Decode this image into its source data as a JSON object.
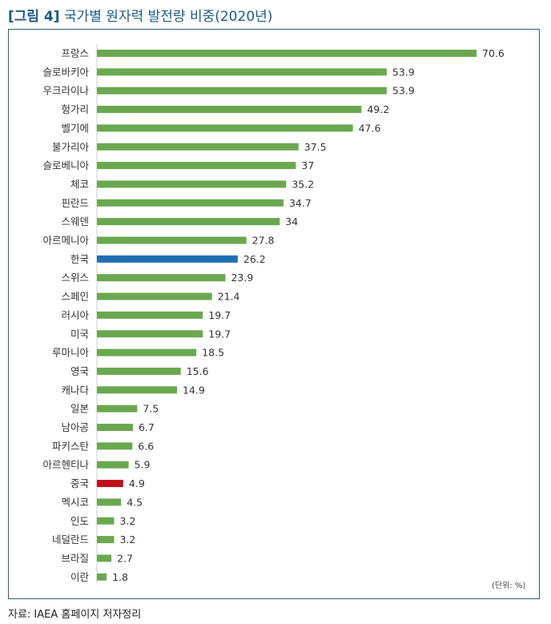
{
  "title": {
    "figure": "[그림 4]",
    "text": "국가별 원자력 발전량 비중(2020년)"
  },
  "unit": "(단위: %)",
  "source": "자료: IAEA 홈페이지 저자정리",
  "colors": {
    "default_bar": "#6aa84f",
    "korea_bar": "#1f6fb2",
    "china_bar": "#c0101c",
    "frame": "#2d5f7a",
    "title": "#1a5a8a"
  },
  "chart_data": {
    "type": "bar",
    "orientation": "horizontal",
    "categories": [
      "프랑스",
      "슬로바키아",
      "우크라이나",
      "헝가리",
      "벨기에",
      "불가리아",
      "슬로베니아",
      "체코",
      "핀란드",
      "스웨덴",
      "아르메니아",
      "한국",
      "스위스",
      "스페인",
      "러시아",
      "미국",
      "루마니아",
      "영국",
      "캐나다",
      "일본",
      "남아공",
      "파키스탄",
      "아르헨티나",
      "중국",
      "멕시코",
      "인도",
      "네덜란드",
      "브라질",
      "이란"
    ],
    "values": [
      70.6,
      53.9,
      53.9,
      49.2,
      47.6,
      37.5,
      37,
      35.2,
      34.7,
      34,
      27.8,
      26.2,
      23.9,
      21.4,
      19.7,
      19.7,
      18.5,
      15.6,
      14.9,
      7.5,
      6.7,
      6.6,
      5.9,
      4.9,
      4.5,
      3.2,
      3.2,
      2.7,
      1.8
    ],
    "value_labels": [
      "70.6",
      "53.9",
      "53.9",
      "49.2",
      "47.6",
      "37.5",
      "37",
      "35.2",
      "34.7",
      "34",
      "27.8",
      "26.2",
      "23.9",
      "21.4",
      "19.7",
      "19.7",
      "18.5",
      "15.6",
      "14.9",
      "7.5",
      "6.7",
      "6.6",
      "5.9",
      "4.9",
      "4.5",
      "3.2",
      "3.2",
      "2.7",
      "1.8"
    ],
    "highlight": {
      "한국": "korea_bar",
      "중국": "china_bar"
    },
    "xlim": [
      0,
      75
    ],
    "grid": false,
    "legend": "none",
    "xlabel": "",
    "ylabel": ""
  }
}
